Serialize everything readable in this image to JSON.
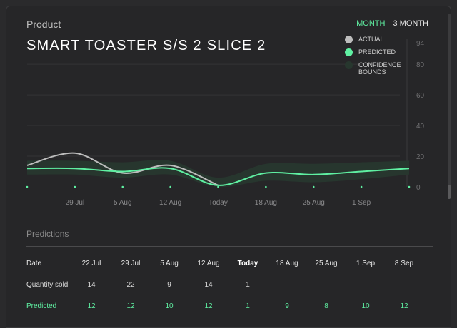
{
  "card": {
    "title": "Product",
    "product_name": "SMART TOASTER S/S 2 SLICE 2",
    "range_tabs": [
      "MONTH",
      "3 MONTH"
    ],
    "active_range": "MONTH"
  },
  "legend": [
    {
      "label": "ACTUAL",
      "color": "#bdbdbd"
    },
    {
      "label": "PREDICTED",
      "color": "#5ff0a2"
    },
    {
      "label": "CONFIDENCE BOUNDS",
      "color": "#27372e"
    }
  ],
  "chart_data": {
    "type": "line",
    "y_ticks": [
      0,
      20,
      40,
      60,
      80,
      94
    ],
    "ylim": [
      0,
      94
    ],
    "x_labels": [
      "29 Jul",
      "5 Aug",
      "12 Aug",
      "Today",
      "18 Aug",
      "25 Aug",
      "1 Sep"
    ],
    "x_label_positions": [
      1,
      2,
      3,
      4,
      5,
      6,
      7
    ],
    "xlim": [
      0,
      8
    ],
    "tick_dots": [
      0,
      1,
      2,
      3,
      4,
      5,
      6,
      7,
      8
    ],
    "series": [
      {
        "name": "ACTUAL",
        "color": "#bdbdbd",
        "points": [
          [
            0,
            14
          ],
          [
            1,
            22
          ],
          [
            2,
            9
          ],
          [
            3,
            14
          ],
          [
            4,
            1
          ]
        ]
      },
      {
        "name": "PREDICTED",
        "color": "#5ff0a2",
        "points": [
          [
            0,
            12
          ],
          [
            1,
            12
          ],
          [
            2,
            10
          ],
          [
            3,
            12
          ],
          [
            4,
            1
          ],
          [
            5,
            9
          ],
          [
            6,
            8
          ],
          [
            7,
            10
          ],
          [
            8,
            12
          ]
        ]
      }
    ],
    "confidence_bounds": {
      "color": "#27372e",
      "upper": [
        17,
        17,
        16,
        17,
        6,
        15,
        15,
        16,
        17
      ],
      "lower": [
        8,
        8,
        6,
        8,
        0,
        4,
        3,
        5,
        8
      ]
    }
  },
  "predictions": {
    "title": "Predictions",
    "row_labels": {
      "date": "Date",
      "quantity": "Quantity sold",
      "predicted": "Predicted"
    },
    "dates": [
      "22 Jul",
      "29 Jul",
      "5 Aug",
      "12 Aug",
      "Today",
      "18 Aug",
      "25 Aug",
      "1 Sep",
      "8 Sep"
    ],
    "today_index": 4,
    "quantity_sold": [
      "14",
      "22",
      "9",
      "14",
      "1",
      "",
      "",
      "",
      ""
    ],
    "predicted": [
      "12",
      "12",
      "10",
      "12",
      "1",
      "9",
      "8",
      "10",
      "12"
    ]
  }
}
